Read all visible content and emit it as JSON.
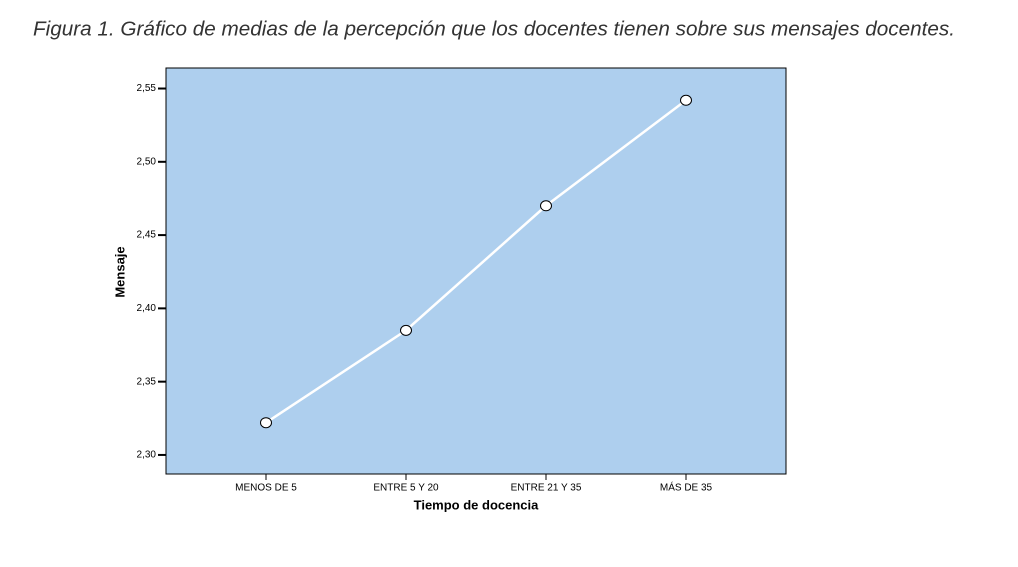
{
  "chart_data": {
    "type": "line",
    "title": "Figura 1. Gráfico de medias de la percepción que los docentes tienen sobre sus mensajes docentes.",
    "x_label": "Tiempo de docencia",
    "y_label": "Mensaje",
    "categories": [
      "MENOS DE 5",
      "ENTRE 5 Y 20",
      "ENTRE 21 Y 35",
      "MÁS DE 35"
    ],
    "series": [
      {
        "name": "Mensaje",
        "color": "#ffffff",
        "values": [
          2.322,
          2.385,
          2.47,
          2.542
        ]
      }
    ],
    "background": "#aecfee",
    "ylim": [
      2.287,
      2.564
    ],
    "yticks": [
      {
        "value": 2.3,
        "label": "2,30"
      },
      {
        "value": 2.35,
        "label": "2,35"
      },
      {
        "value": 2.4,
        "label": "2,40"
      },
      {
        "value": 2.45,
        "label": "2,45"
      },
      {
        "value": 2.5,
        "label": "2,50"
      },
      {
        "value": 2.55,
        "label": "2,55"
      }
    ]
  }
}
